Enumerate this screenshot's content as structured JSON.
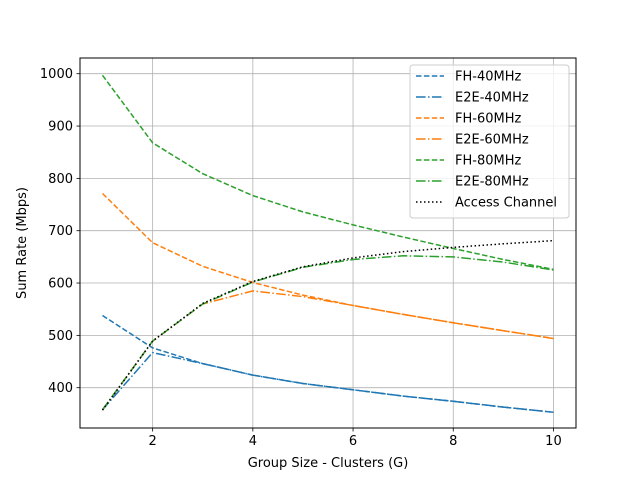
{
  "chart_data": {
    "type": "line",
    "title": "",
    "xlabel": "Group Size - Clusters (G)",
    "ylabel": "Sum Rate (Mbps)",
    "xlim": [
      0.55,
      10.45
    ],
    "ylim": [
      323,
      1030
    ],
    "xticks": [
      2,
      4,
      6,
      8,
      10
    ],
    "yticks": [
      400,
      500,
      600,
      700,
      800,
      900,
      1000
    ],
    "grid": true,
    "legend_position": "top-right",
    "x": [
      1,
      2,
      3,
      4,
      5,
      6,
      7,
      8,
      9,
      10
    ],
    "series": [
      {
        "name": "FH-40MHz",
        "color": "#1f77b4",
        "dash": "dashed",
        "values": [
          538,
          476,
          446,
          424,
          408,
          396,
          384,
          374,
          363,
          353
        ]
      },
      {
        "name": "E2E-40MHz",
        "color": "#1f77b4",
        "dash": "dashdot",
        "values": [
          358,
          467,
          446,
          424,
          408,
          396,
          384,
          374,
          363,
          353
        ]
      },
      {
        "name": "FH-60MHz",
        "color": "#ff7f0e",
        "dash": "dashed",
        "values": [
          771,
          677,
          632,
          601,
          577,
          557,
          540,
          524,
          509,
          494
        ]
      },
      {
        "name": "E2E-60MHz",
        "color": "#ff7f0e",
        "dash": "dashdot",
        "values": [
          358,
          489,
          560,
          585,
          574,
          557,
          540,
          524,
          509,
          494
        ]
      },
      {
        "name": "FH-80MHz",
        "color": "#2ca02c",
        "dash": "dashed",
        "values": [
          997,
          868,
          809,
          767,
          736,
          711,
          688,
          666,
          645,
          626
        ]
      },
      {
        "name": "E2E-80MHz",
        "color": "#2ca02c",
        "dash": "dashdot",
        "values": [
          358,
          489,
          560,
          602,
          630,
          645,
          652,
          650,
          640,
          625
        ]
      },
      {
        "name": "Access Channel",
        "color": "#000000",
        "dash": "dotted",
        "values": [
          357,
          489,
          561,
          603,
          631,
          648,
          660,
          668,
          675,
          681
        ]
      }
    ]
  }
}
